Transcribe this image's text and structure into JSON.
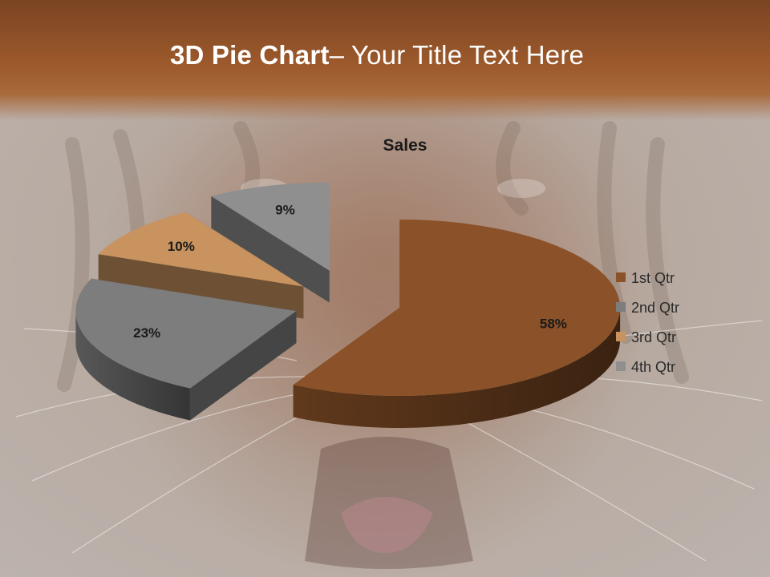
{
  "slide": {
    "title_bold": "3D Pie Chart",
    "title_rest": "– Your Title Text Here"
  },
  "colors": {
    "banner": "#9d5a2c",
    "background": "#b9aea7"
  },
  "chart_data": {
    "type": "pie",
    "title": "Sales",
    "categories": [
      "1st Qtr",
      "2nd Qtr",
      "3rd Qtr",
      "4th Qtr"
    ],
    "values": [
      58,
      23,
      10,
      9
    ],
    "labels": [
      "58%",
      "23%",
      "10%",
      "9%"
    ],
    "colors": [
      "#8b5128",
      "#7d7d7d",
      "#c8935e",
      "#8f8f8f"
    ],
    "exploded": true,
    "three_d": true,
    "legend": "right"
  }
}
